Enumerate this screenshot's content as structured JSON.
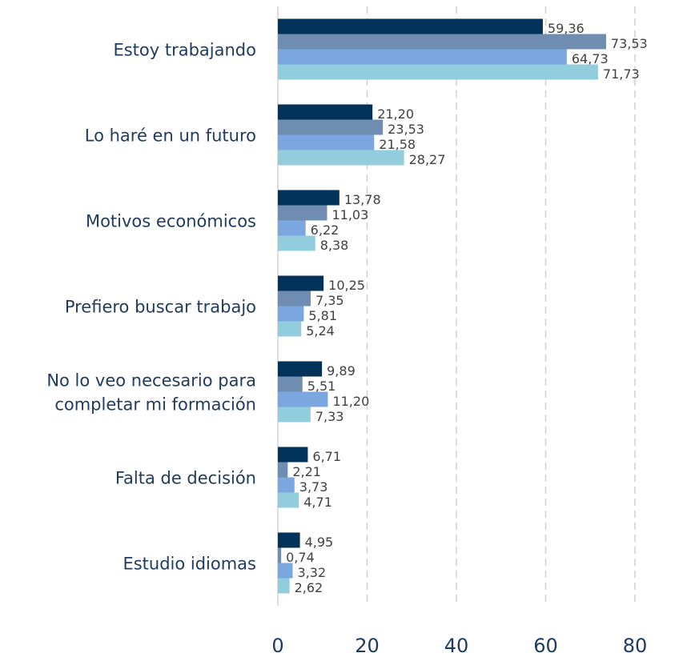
{
  "chart_data": {
    "type": "bar",
    "orientation": "horizontal",
    "categories": [
      "Estoy trabajando",
      "Lo haré en un futuro",
      "Motivos económicos",
      "Prefiero buscar trabajo",
      "No lo veo necesario para\ncompletar mi formación",
      "Falta de decisión",
      "Estudio idiomas"
    ],
    "series": [
      {
        "color": "#00325a",
        "values": [
          59.36,
          21.2,
          13.78,
          10.25,
          9.89,
          6.71,
          4.95
        ],
        "value_labels": [
          "59,36",
          "21,20",
          "13,78",
          "10,25",
          "9,89",
          "6,71",
          "4,95"
        ]
      },
      {
        "color": "#6f8db0",
        "values": [
          73.53,
          23.53,
          11.03,
          7.35,
          5.51,
          2.21,
          0.74
        ],
        "value_labels": [
          "73,53",
          "23,53",
          "11,03",
          "7,35",
          "5,51",
          "2,21",
          "0,74"
        ]
      },
      {
        "color": "#7ba7e0",
        "values": [
          64.73,
          21.58,
          6.22,
          5.81,
          11.2,
          3.73,
          3.32
        ],
        "value_labels": [
          "64,73",
          "21,58",
          "6,22",
          "5,81",
          "11,20",
          "3,73",
          "3,32"
        ]
      },
      {
        "color": "#92cddd",
        "values": [
          71.73,
          28.27,
          8.38,
          5.24,
          7.33,
          4.71,
          2.62
        ],
        "value_labels": [
          "71,73",
          "28,27",
          "8,38",
          "5,24",
          "7,33",
          "4,71",
          "2,62"
        ]
      }
    ],
    "xlim": [
      0,
      80
    ],
    "xticks": [
      0,
      20,
      40,
      60,
      80
    ],
    "grid": true
  }
}
